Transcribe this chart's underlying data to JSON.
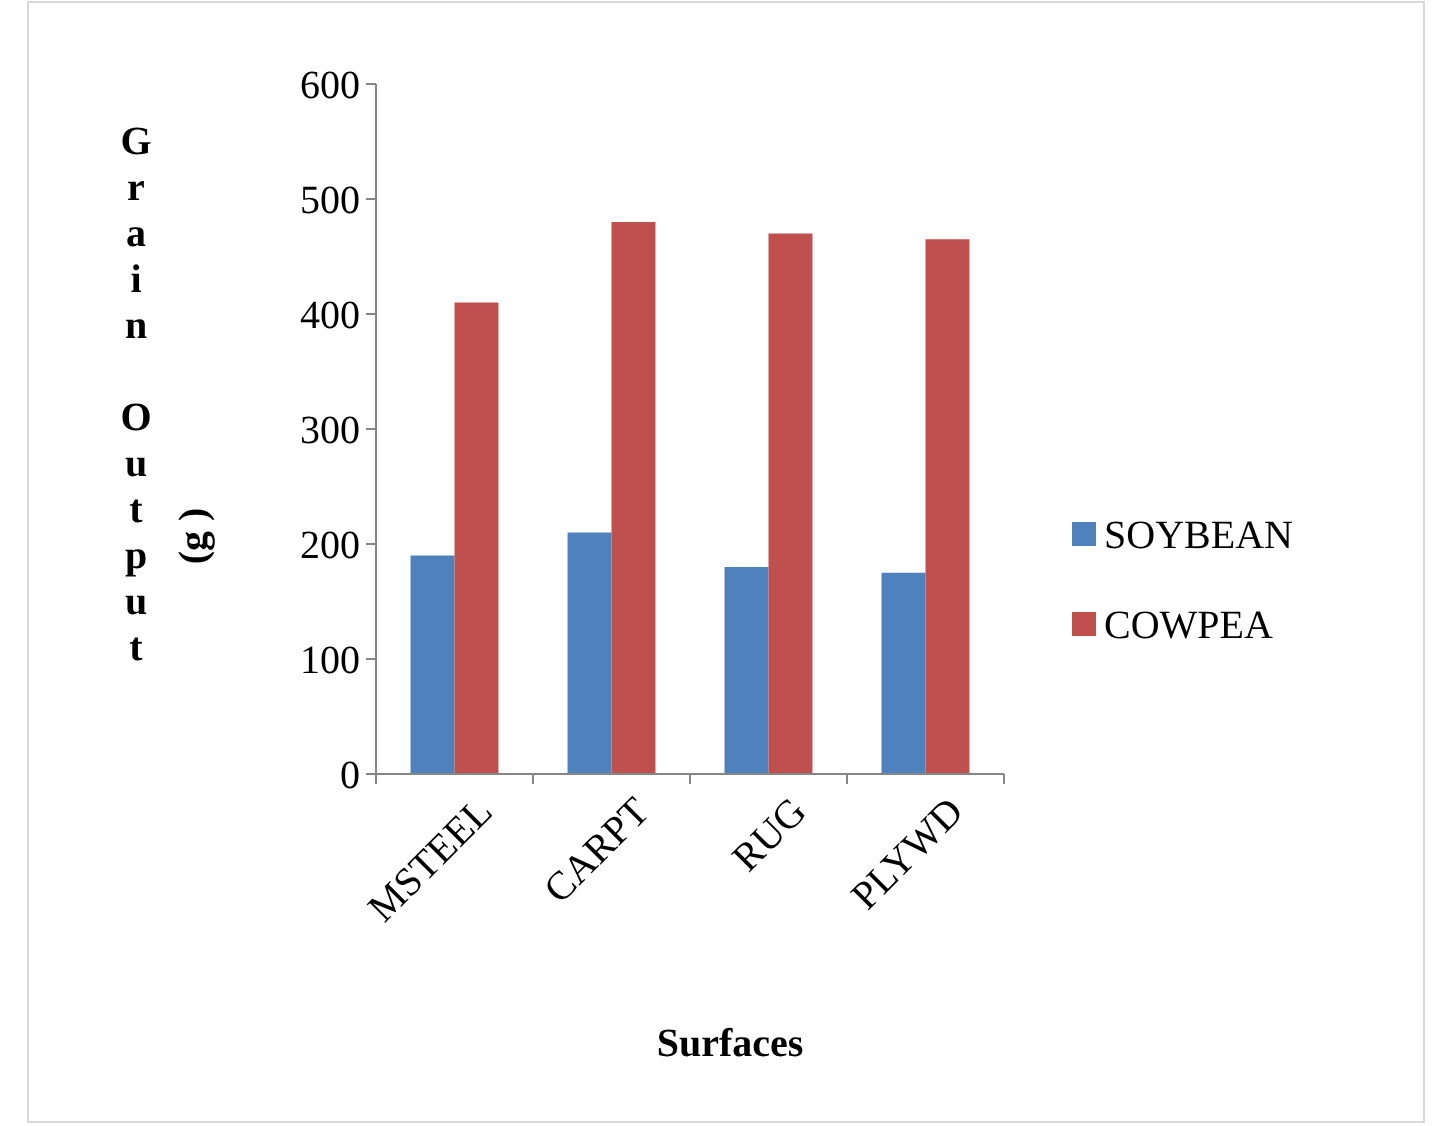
{
  "chart_data": {
    "type": "bar",
    "xlabel": "Surfaces",
    "ylabel": "Grain Output (g )",
    "categories": [
      "MSTEEL",
      "CARPT",
      "RUG",
      "PLYWD"
    ],
    "series": [
      {
        "name": "SOYBEAN",
        "color": "#4f81bd",
        "values": [
          190,
          210,
          180,
          175
        ]
      },
      {
        "name": "COWPEA",
        "color": "#c0504d",
        "values": [
          410,
          480,
          470,
          465
        ]
      }
    ],
    "ylim": [
      0,
      600
    ],
    "yticks": [
      0,
      100,
      200,
      300,
      400,
      500,
      600
    ],
    "grid": false,
    "legend": "right"
  }
}
